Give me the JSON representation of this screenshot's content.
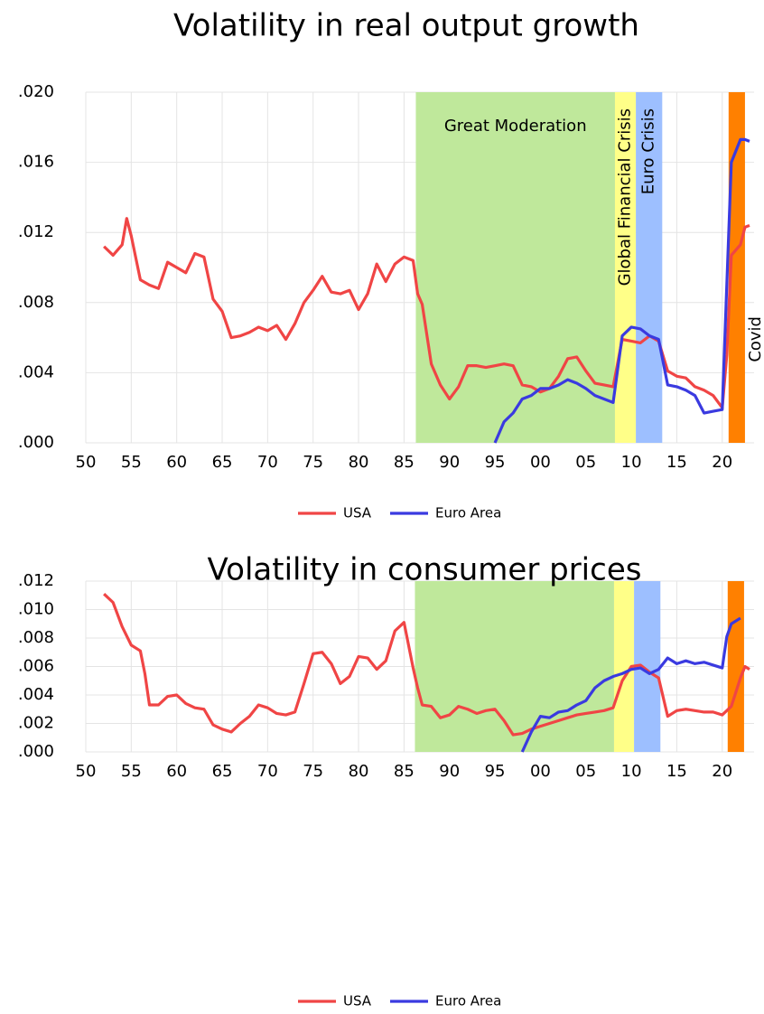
{
  "chart_data": [
    {
      "type": "line",
      "title": "Volatility in real output growth",
      "x": [
        1952,
        1953,
        1954,
        1954.5,
        1955,
        1956,
        1957,
        1958,
        1959,
        1960,
        1961,
        1962,
        1963,
        1964,
        1965,
        1966,
        1967,
        1968,
        1969,
        1970,
        1971,
        1972,
        1973,
        1974,
        1975,
        1976,
        1977,
        1978,
        1979,
        1980,
        1981,
        1982,
        1983,
        1984,
        1985,
        1986,
        1986.5,
        1987,
        1988,
        1989,
        1990,
        1991,
        1992,
        1993,
        1994,
        1995,
        1996,
        1997,
        1998,
        1999,
        2000,
        2001,
        2002,
        2003,
        2004,
        2005,
        2006,
        2007,
        2008,
        2009,
        2010,
        2011,
        2012,
        2013,
        2014,
        2015,
        2016,
        2017,
        2018,
        2019,
        2020,
        2020.5,
        2021,
        2022,
        2022.5,
        2023
      ],
      "series": [
        {
          "name": "USA",
          "color": "#f04545",
          "values": [
            0.0112,
            0.0107,
            0.0113,
            0.0128,
            0.0118,
            0.0093,
            0.009,
            0.0088,
            0.0103,
            0.01,
            0.0097,
            0.0108,
            0.0106,
            0.0082,
            0.0075,
            0.006,
            0.0061,
            0.0063,
            0.0066,
            0.0064,
            0.0067,
            0.0059,
            0.0068,
            0.008,
            0.0087,
            0.0095,
            0.0086,
            0.0085,
            0.0087,
            0.0076,
            0.0085,
            0.0102,
            0.0092,
            0.0102,
            0.0106,
            0.0104,
            0.0085,
            0.0079,
            0.0045,
            0.0033,
            0.0025,
            0.0032,
            0.0044,
            0.0044,
            0.0043,
            0.0044,
            0.0045,
            0.0044,
            0.0033,
            0.0032,
            0.0029,
            0.0031,
            0.0038,
            0.0048,
            0.0049,
            0.0041,
            0.0034,
            0.0033,
            0.0032,
            0.0059,
            0.0058,
            0.0057,
            0.0061,
            0.0058,
            0.0041,
            0.0038,
            0.0037,
            0.0032,
            0.003,
            0.0027,
            0.002,
            0.005,
            0.0107,
            0.0113,
            0.0123,
            0.0124
          ]
        },
        {
          "name": "Euro Area",
          "color": "#3a3ae0",
          "values": [
            null,
            null,
            null,
            null,
            null,
            null,
            null,
            null,
            null,
            null,
            null,
            null,
            null,
            null,
            null,
            null,
            null,
            null,
            null,
            null,
            null,
            null,
            null,
            null,
            null,
            null,
            null,
            null,
            null,
            null,
            null,
            null,
            null,
            null,
            null,
            null,
            null,
            null,
            null,
            null,
            null,
            null,
            null,
            null,
            null,
            0.0,
            0.0012,
            0.0017,
            0.0025,
            0.0027,
            0.0031,
            0.0031,
            0.0033,
            0.0036,
            0.0034,
            0.0031,
            0.0027,
            0.0025,
            0.0023,
            0.0061,
            0.0066,
            0.0065,
            0.0061,
            0.0059,
            0.0033,
            0.0032,
            0.003,
            0.0027,
            0.0017,
            0.0018,
            0.0019,
            0.009,
            0.016,
            0.0173,
            0.0173,
            0.0172
          ]
        }
      ],
      "regions": [
        {
          "label": "Great Moderation",
          "start": 1986.3,
          "end": 2008.2,
          "color": "#bfe89b"
        },
        {
          "label": "Global Financial Crisis",
          "start": 2008.2,
          "end": 2010.5,
          "color": "#ffff88"
        },
        {
          "label": "Euro Crisis",
          "start": 2010.5,
          "end": 2013.4,
          "color": "#9dbfff"
        },
        {
          "label": "Covid",
          "start": 2020.7,
          "end": 2022.5,
          "color": "#ff8000"
        }
      ],
      "xlim": [
        1950,
        2023.5
      ],
      "xticks": [
        {
          "value": 1950,
          "label": "50"
        },
        {
          "value": 1955,
          "label": "55"
        },
        {
          "value": 1960,
          "label": "60"
        },
        {
          "value": 1965,
          "label": "65"
        },
        {
          "value": 1970,
          "label": "70"
        },
        {
          "value": 1975,
          "label": "75"
        },
        {
          "value": 1980,
          "label": "80"
        },
        {
          "value": 1985,
          "label": "85"
        },
        {
          "value": 1990,
          "label": "90"
        },
        {
          "value": 1995,
          "label": "95"
        },
        {
          "value": 2000,
          "label": "00"
        },
        {
          "value": 2005,
          "label": "05"
        },
        {
          "value": 2010,
          "label": "10"
        },
        {
          "value": 2015,
          "label": "15"
        },
        {
          "value": 2020,
          "label": "20"
        }
      ],
      "ylim": [
        0,
        0.02
      ],
      "yticks": [
        {
          "value": 0,
          "label": ".000"
        },
        {
          "value": 0.004,
          "label": ".004"
        },
        {
          "value": 0.008,
          "label": ".008"
        },
        {
          "value": 0.012,
          "label": ".012"
        },
        {
          "value": 0.016,
          "label": ".016"
        },
        {
          "value": 0.02,
          "label": ".020"
        }
      ],
      "grid": true,
      "legend": "bottom"
    },
    {
      "type": "line",
      "title": "Volatility in consumer prices",
      "x": [
        1952,
        1953,
        1954,
        1955,
        1956,
        1956.5,
        1957,
        1958,
        1959,
        1960,
        1961,
        1962,
        1963,
        1964,
        1965,
        1966,
        1967,
        1968,
        1969,
        1970,
        1971,
        1972,
        1973,
        1974,
        1975,
        1976,
        1977,
        1978,
        1979,
        1980,
        1981,
        1982,
        1983,
        1984,
        1985,
        1986,
        1986.5,
        1987,
        1988,
        1989,
        1990,
        1991,
        1992,
        1993,
        1994,
        1995,
        1996,
        1997,
        1998,
        1999,
        2000,
        2001,
        2002,
        2003,
        2004,
        2005,
        2006,
        2007,
        2008,
        2009,
        2010,
        2011,
        2012,
        2013,
        2014,
        2015,
        2016,
        2017,
        2018,
        2019,
        2020,
        2020.5,
        2021,
        2022,
        2022.5,
        2023
      ],
      "series": [
        {
          "name": "USA",
          "color": "#f04545",
          "values": [
            0.0111,
            0.0105,
            0.0088,
            0.0075,
            0.0071,
            0.0055,
            0.0033,
            0.0033,
            0.0039,
            0.004,
            0.0034,
            0.0031,
            0.003,
            0.0019,
            0.0016,
            0.0014,
            0.002,
            0.0025,
            0.0033,
            0.0031,
            0.0027,
            0.0026,
            0.0028,
            0.0048,
            0.0069,
            0.007,
            0.0062,
            0.0048,
            0.0053,
            0.0067,
            0.0066,
            0.0058,
            0.0064,
            0.0085,
            0.0091,
            0.0059,
            0.0045,
            0.0033,
            0.0032,
            0.0024,
            0.0026,
            0.0032,
            0.003,
            0.0027,
            0.0029,
            0.003,
            0.0022,
            0.0012,
            0.0013,
            0.0016,
            0.0018,
            0.002,
            0.0022,
            0.0024,
            0.0026,
            0.0027,
            0.0028,
            0.0029,
            0.0031,
            0.005,
            0.006,
            0.0061,
            0.0056,
            0.0052,
            0.0025,
            0.0029,
            0.003,
            0.0029,
            0.0028,
            0.0028,
            0.0026,
            0.0029,
            0.0032,
            0.0052,
            0.006,
            0.0058
          ]
        },
        {
          "name": "Euro Area",
          "color": "#3a3ae0",
          "values": [
            null,
            null,
            null,
            null,
            null,
            null,
            null,
            null,
            null,
            null,
            null,
            null,
            null,
            null,
            null,
            null,
            null,
            null,
            null,
            null,
            null,
            null,
            null,
            null,
            null,
            null,
            null,
            null,
            null,
            null,
            null,
            null,
            null,
            null,
            null,
            null,
            null,
            null,
            null,
            null,
            null,
            null,
            null,
            null,
            null,
            null,
            null,
            null,
            0.0,
            0.0014,
            0.0025,
            0.0024,
            0.0028,
            0.0029,
            0.0033,
            0.0036,
            0.0045,
            0.005,
            0.0053,
            0.0055,
            0.0058,
            0.0059,
            0.0055,
            0.0058,
            0.0066,
            0.0062,
            0.0064,
            0.0062,
            0.0063,
            0.0061,
            0.0059,
            0.0081,
            0.009,
            0.0094,
            null,
            null
          ]
        }
      ],
      "regions": [
        {
          "start": 1986.2,
          "end": 2008.1,
          "color": "#bfe89b"
        },
        {
          "start": 2008.1,
          "end": 2010.3,
          "color": "#ffff88"
        },
        {
          "start": 2010.3,
          "end": 2013.2,
          "color": "#9dbfff"
        },
        {
          "start": 2020.6,
          "end": 2022.4,
          "color": "#ff8000"
        }
      ],
      "xlim": [
        1950,
        2023.5
      ],
      "xticks": [
        {
          "value": 1950,
          "label": "50"
        },
        {
          "value": 1955,
          "label": "55"
        },
        {
          "value": 1960,
          "label": "60"
        },
        {
          "value": 1965,
          "label": "65"
        },
        {
          "value": 1970,
          "label": "70"
        },
        {
          "value": 1975,
          "label": "75"
        },
        {
          "value": 1980,
          "label": "80"
        },
        {
          "value": 1985,
          "label": "85"
        },
        {
          "value": 1990,
          "label": "90"
        },
        {
          "value": 1995,
          "label": "95"
        },
        {
          "value": 2000,
          "label": "00"
        },
        {
          "value": 2005,
          "label": "05"
        },
        {
          "value": 2010,
          "label": "10"
        },
        {
          "value": 2015,
          "label": "15"
        },
        {
          "value": 2020,
          "label": "20"
        }
      ],
      "ylim": [
        0,
        0.012
      ],
      "yticks": [
        {
          "value": 0,
          "label": ".000"
        },
        {
          "value": 0.002,
          "label": ".002"
        },
        {
          "value": 0.004,
          "label": ".004"
        },
        {
          "value": 0.006,
          "label": ".006"
        },
        {
          "value": 0.008,
          "label": ".008"
        },
        {
          "value": 0.01,
          "label": ".010"
        },
        {
          "value": 0.012,
          "label": ".012"
        }
      ],
      "grid": true,
      "legend": "bottom"
    }
  ]
}
